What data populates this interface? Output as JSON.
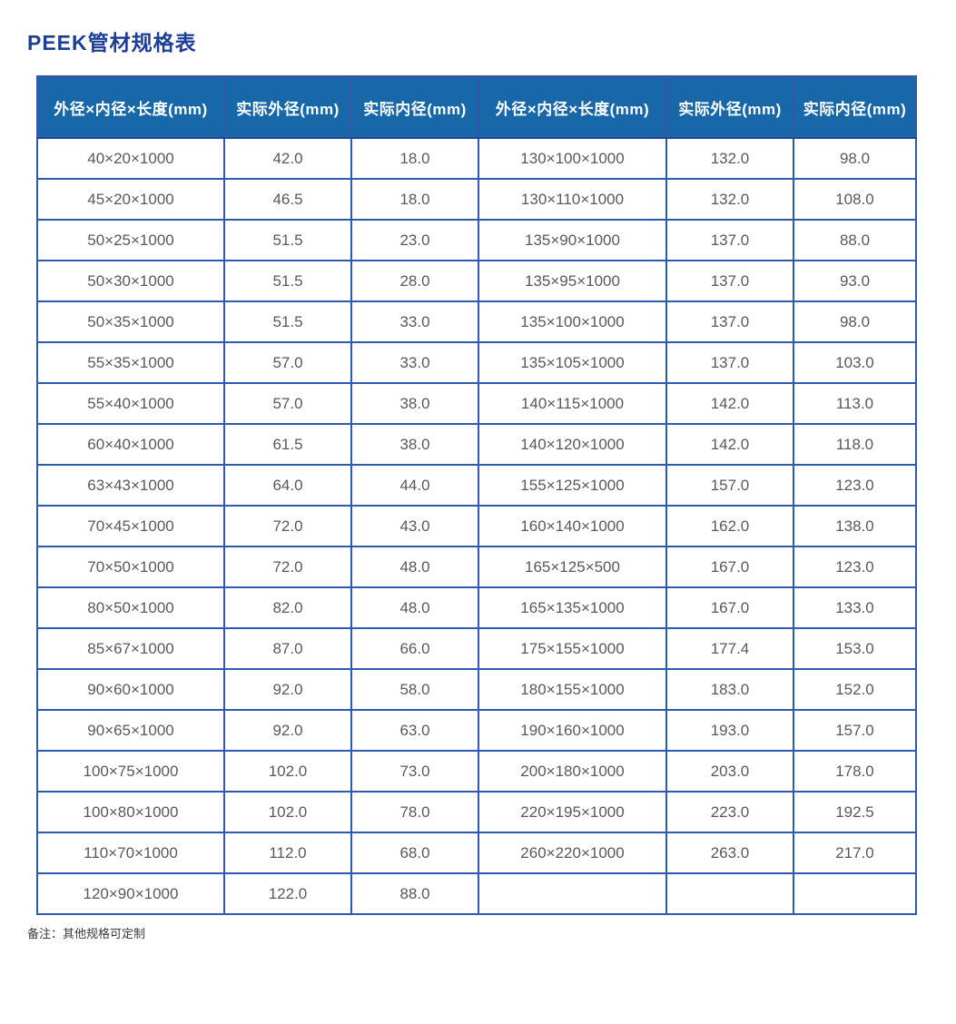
{
  "page": {
    "title": "PEEK管材规格表",
    "note": "备注：其他规格可定制"
  },
  "colors": {
    "title": "#1d3e96",
    "header_bg": "#1767a9",
    "header_text": "#ffffff",
    "border": "#2d5aaf",
    "cell_text": "#58595b"
  },
  "table": {
    "headers": [
      "外径×内径×长度(mm)",
      "实际外径(mm)",
      "实际内径(mm)",
      "外径×内径×长度(mm)",
      "实际外径(mm)",
      "实际内径(mm)"
    ],
    "rows": [
      [
        "40×20×1000",
        "42.0",
        "18.0",
        "130×100×1000",
        "132.0",
        "98.0"
      ],
      [
        "45×20×1000",
        "46.5",
        "18.0",
        "130×110×1000",
        "132.0",
        "108.0"
      ],
      [
        "50×25×1000",
        "51.5",
        "23.0",
        "135×90×1000",
        "137.0",
        "88.0"
      ],
      [
        "50×30×1000",
        "51.5",
        "28.0",
        "135×95×1000",
        "137.0",
        "93.0"
      ],
      [
        "50×35×1000",
        "51.5",
        "33.0",
        "135×100×1000",
        "137.0",
        "98.0"
      ],
      [
        "55×35×1000",
        "57.0",
        "33.0",
        "135×105×1000",
        "137.0",
        "103.0"
      ],
      [
        "55×40×1000",
        "57.0",
        "38.0",
        "140×115×1000",
        "142.0",
        "113.0"
      ],
      [
        "60×40×1000",
        "61.5",
        "38.0",
        "140×120×1000",
        "142.0",
        "118.0"
      ],
      [
        "63×43×1000",
        "64.0",
        "44.0",
        "155×125×1000",
        "157.0",
        "123.0"
      ],
      [
        "70×45×1000",
        "72.0",
        "43.0",
        "160×140×1000",
        "162.0",
        "138.0"
      ],
      [
        "70×50×1000",
        "72.0",
        "48.0",
        "165×125×500",
        "167.0",
        "123.0"
      ],
      [
        "80×50×1000",
        "82.0",
        "48.0",
        "165×135×1000",
        "167.0",
        "133.0"
      ],
      [
        "85×67×1000",
        "87.0",
        "66.0",
        "175×155×1000",
        "177.4",
        "153.0"
      ],
      [
        "90×60×1000",
        "92.0",
        "58.0",
        "180×155×1000",
        "183.0",
        "152.0"
      ],
      [
        "90×65×1000",
        "92.0",
        "63.0",
        "190×160×1000",
        "193.0",
        "157.0"
      ],
      [
        "100×75×1000",
        "102.0",
        "73.0",
        "200×180×1000",
        "203.0",
        "178.0"
      ],
      [
        "100×80×1000",
        "102.0",
        "78.0",
        "220×195×1000",
        "223.0",
        "192.5"
      ],
      [
        "110×70×1000",
        "112.0",
        "68.0",
        "260×220×1000",
        "263.0",
        "217.0"
      ],
      [
        "120×90×1000",
        "122.0",
        "88.0",
        "",
        "",
        ""
      ]
    ]
  }
}
